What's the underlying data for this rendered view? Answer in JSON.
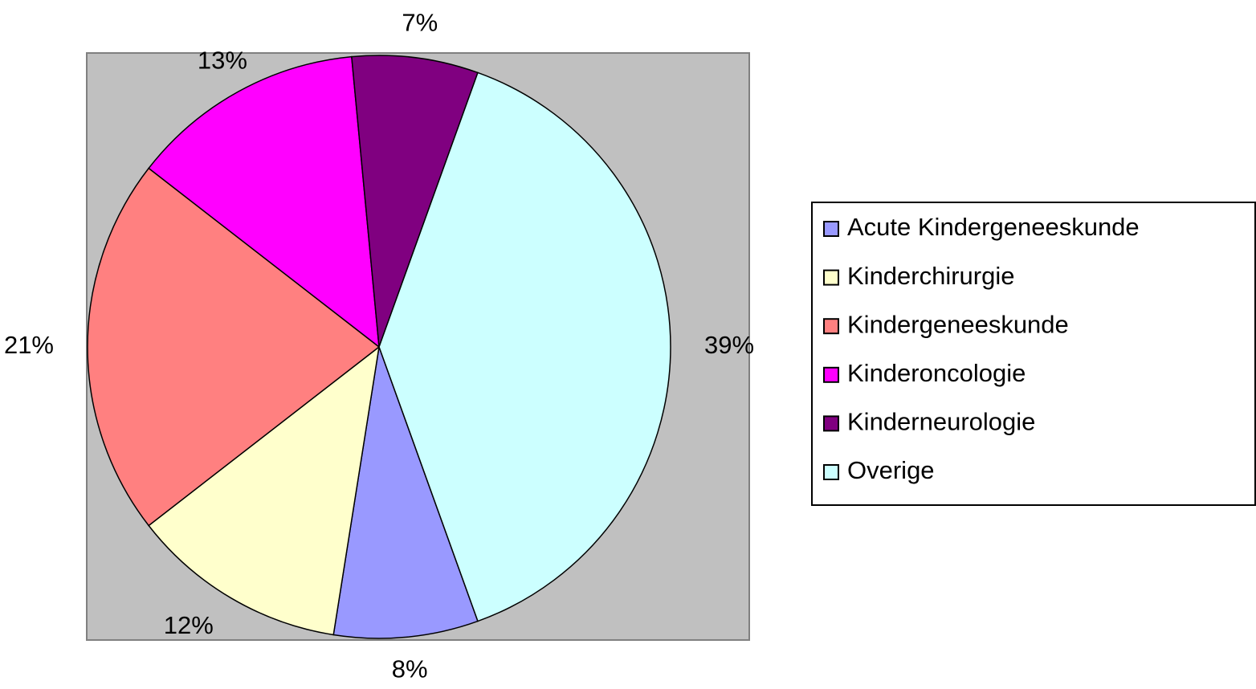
{
  "chart_data": {
    "type": "pie",
    "categories": [
      "Acute Kindergeneeskunde",
      "Kinderchirurgie",
      "Kindergeneeskunde",
      "Kinderoncologie",
      "Kinderneurologie",
      "Overige"
    ],
    "values": [
      8,
      12,
      21,
      13,
      7,
      39
    ],
    "value_labels": [
      "8%",
      "12%",
      "21%",
      "13%",
      "7%",
      "39%"
    ],
    "colors": [
      "#9999ff",
      "#ffffcc",
      "#ff8080",
      "#ff00ff",
      "#800080",
      "#ccffff"
    ],
    "legend": "right"
  }
}
